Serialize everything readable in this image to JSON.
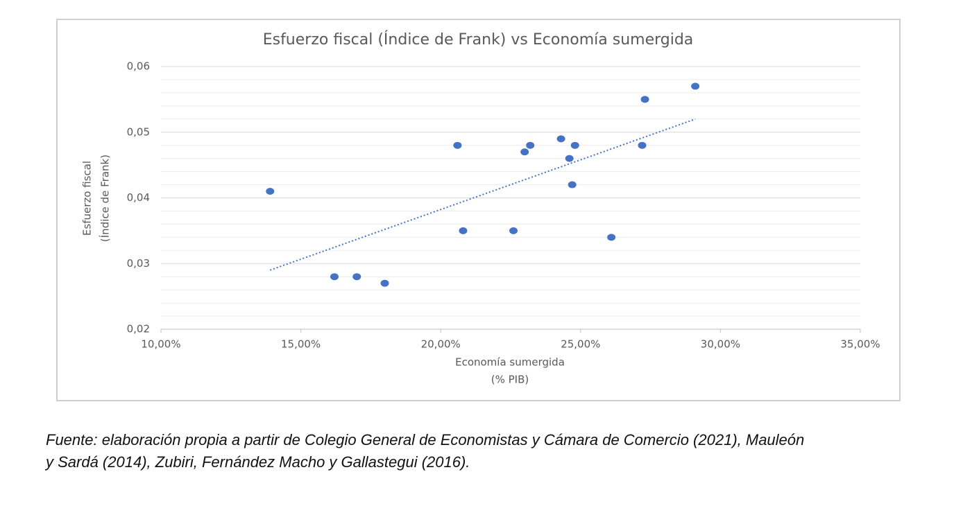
{
  "chart_data": {
    "type": "scatter",
    "title": "Esfuerzo fiscal (Índice de Frank) vs Economía sumergida",
    "x_label": [
      "Economía sumergida",
      "(% PIB)"
    ],
    "y_label": [
      "Esfuerzo fiscal",
      "(Índice de Frank)"
    ],
    "color": "#4472c4",
    "x": [
      13.9,
      16.2,
      17.0,
      18.0,
      20.6,
      20.8,
      22.6,
      23.0,
      23.2,
      24.3,
      24.6,
      24.7,
      24.8,
      26.1,
      27.2,
      27.3,
      29.1
    ],
    "values": [
      0.041,
      0.028,
      0.028,
      0.027,
      0.048,
      0.035,
      0.035,
      0.047,
      0.048,
      0.049,
      0.046,
      0.042,
      0.048,
      0.034,
      0.048,
      0.055,
      0.057
    ],
    "trendline": {
      "x": [
        13.9,
        29.1
      ],
      "values": [
        0.029,
        0.052
      ]
    },
    "xlim": [
      10,
      35
    ],
    "xticks": [
      {
        "value": 10,
        "label": "10,00%"
      },
      {
        "value": 15,
        "label": "15,00%"
      },
      {
        "value": 20,
        "label": "20,00%"
      },
      {
        "value": 25,
        "label": "25,00%"
      },
      {
        "value": 30,
        "label": "30,00%"
      },
      {
        "value": 35,
        "label": "35,00%"
      }
    ],
    "ylim": [
      0.02,
      0.06
    ],
    "yticks": [
      {
        "value": 0.02,
        "label": "0,02"
      },
      {
        "value": 0.03,
        "label": "0,03"
      },
      {
        "value": 0.04,
        "label": "0,04"
      },
      {
        "value": 0.05,
        "label": "0,05"
      },
      {
        "value": 0.06,
        "label": "0,06"
      }
    ],
    "minor_yticks": [
      0.022,
      0.024,
      0.026,
      0.028,
      0.032,
      0.034,
      0.036,
      0.038,
      0.042,
      0.044,
      0.046,
      0.048,
      0.052,
      0.054,
      0.056,
      0.058
    ],
    "grid": true
  },
  "caption": [
    "Fuente: elaboración propia a partir de Colegio General de Economistas y Cámara de Comercio (2021), Mauleón",
    "y Sardá (2014), Zubiri, Fernández Macho y Gallastegui (2016)."
  ]
}
